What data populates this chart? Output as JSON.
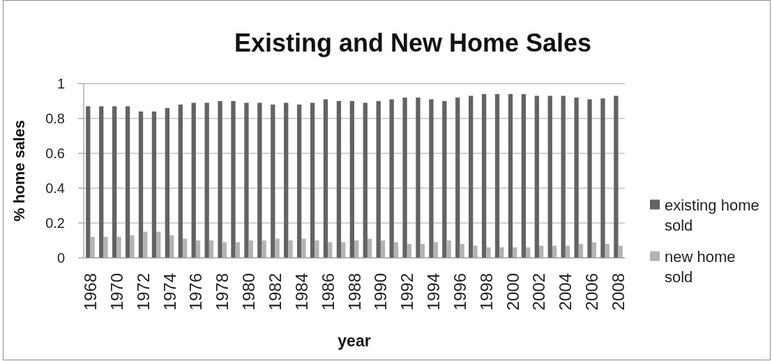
{
  "chart_data": {
    "type": "bar",
    "title": "Existing and New Home Sales",
    "xlabel": "year",
    "ylabel": "% home sales",
    "categories": [
      "1968",
      null,
      "1970",
      null,
      "1972",
      null,
      "1974",
      null,
      "1976",
      null,
      "1978",
      null,
      "1980",
      null,
      "1982",
      null,
      "1984",
      null,
      "1986",
      null,
      "1988",
      null,
      "1990",
      null,
      "1992",
      null,
      "1994",
      null,
      "1996",
      null,
      "1998",
      null,
      "2000",
      null,
      "2002",
      null,
      "2004",
      null,
      "2006",
      null,
      "2008"
    ],
    "series": [
      {
        "name": "existing home sold",
        "color": "#636363",
        "values": [
          0.87,
          0.87,
          0.87,
          0.87,
          0.84,
          0.84,
          0.86,
          0.88,
          0.89,
          0.89,
          0.9,
          0.9,
          0.89,
          0.89,
          0.88,
          0.89,
          0.88,
          0.89,
          0.91,
          0.9,
          0.9,
          0.89,
          0.9,
          0.91,
          0.92,
          0.92,
          0.91,
          0.9,
          0.92,
          0.93,
          0.94,
          0.94,
          0.94,
          0.94,
          0.93,
          0.93,
          0.93,
          0.92,
          0.91,
          0.915,
          0.93
        ]
      },
      {
        "name": "new home sold",
        "color": "#b3b3b3",
        "values": [
          0.12,
          0.12,
          0.12,
          0.13,
          0.15,
          0.15,
          0.13,
          0.11,
          0.1,
          0.1,
          0.09,
          0.09,
          0.1,
          0.1,
          0.11,
          0.1,
          0.11,
          0.1,
          0.09,
          0.09,
          0.1,
          0.11,
          0.1,
          0.09,
          0.08,
          0.08,
          0.09,
          0.1,
          0.08,
          0.07,
          0.06,
          0.06,
          0.06,
          0.06,
          0.07,
          0.07,
          0.07,
          0.08,
          0.09,
          0.08,
          0.07
        ]
      }
    ],
    "ylim": [
      0,
      1
    ],
    "yticks": [
      0,
      0.2,
      0.4,
      0.6,
      0.8,
      1
    ],
    "grid": "y",
    "legend": "right"
  }
}
